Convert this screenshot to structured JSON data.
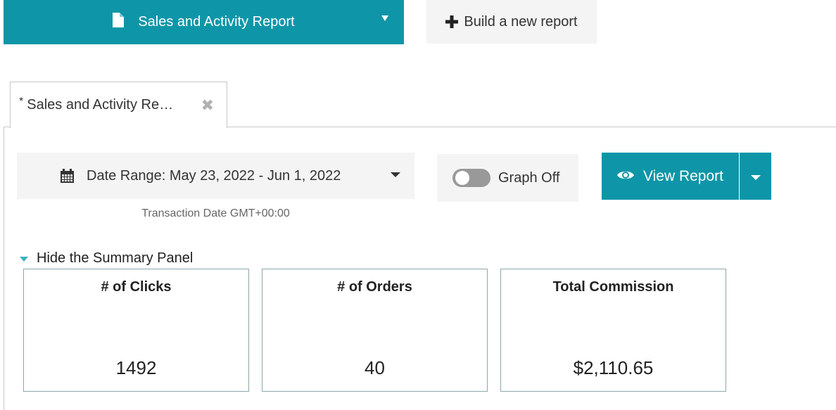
{
  "header": {
    "report_select_label": "Sales and Activity Report",
    "build_button_label": "Build a new report"
  },
  "tabs": [
    {
      "unsaved_marker": "*",
      "label": "Sales and Activity Re…",
      "close": "✖"
    }
  ],
  "controls": {
    "date_range_label": "Date Range: May 23, 2022 - Jun 1, 2022",
    "date_note": "Transaction Date GMT+00:00",
    "graph_toggle_label": "Graph Off",
    "view_report_label": "View Report"
  },
  "summary": {
    "toggle_label": "Hide the Summary Panel",
    "cards": [
      {
        "title": "# of Clicks",
        "value": "1492"
      },
      {
        "title": "# of Orders",
        "value": "40"
      },
      {
        "title": "Total Commission",
        "value": "$2,110.65"
      }
    ]
  },
  "colors": {
    "accent": "#0e96a8",
    "button_gray": "#f4f4f4",
    "toggle_off": "#999999"
  },
  "icons": {
    "report_select": "document-icon",
    "build_button": "plus-icon",
    "date_range": "calendar-icon",
    "view_report": "eye-icon"
  }
}
